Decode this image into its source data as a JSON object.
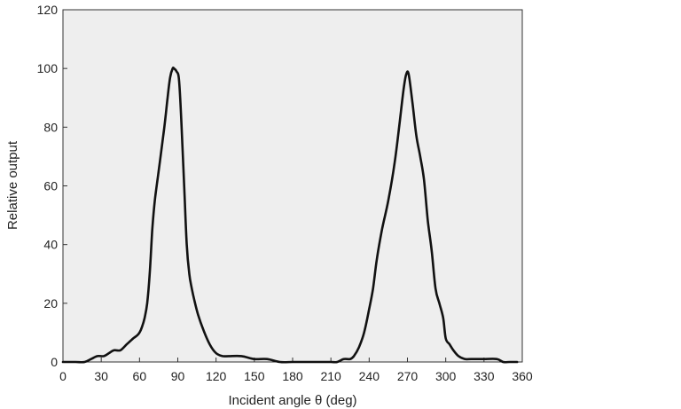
{
  "chart_data": {
    "type": "line",
    "title": "",
    "xlabel": "Incident angle θ (deg)",
    "ylabel": "Relative output",
    "xlim": [
      0,
      360
    ],
    "ylim": [
      0,
      120
    ],
    "xticks": [
      0,
      30,
      60,
      90,
      120,
      150,
      180,
      210,
      240,
      270,
      300,
      330,
      360
    ],
    "yticks": [
      0,
      20,
      40,
      60,
      80,
      100,
      120
    ],
    "xtick_labels": [
      "0",
      "30",
      "60",
      "90",
      "120",
      "150",
      "180",
      "210",
      "240",
      "270",
      "300",
      "330",
      "360"
    ],
    "ytick_labels": [
      "0",
      "20",
      "40",
      "60",
      "80",
      "100",
      "120"
    ],
    "grid": false,
    "legend": "none",
    "plot_background": "#eeeeee",
    "line_color": "#111111",
    "series": [
      {
        "x": [
          0,
          10,
          17,
          22,
          27,
          32,
          36,
          40,
          45,
          50,
          55,
          58,
          60,
          62,
          64,
          66,
          68,
          70,
          72,
          75,
          78,
          80,
          82,
          84,
          86,
          87,
          89,
          91,
          93,
          95,
          97,
          99,
          101,
          103,
          106,
          110,
          115,
          120,
          125,
          130,
          140,
          150,
          160,
          170,
          180,
          190,
          200,
          210,
          215,
          220,
          225,
          228,
          232,
          236,
          240,
          243,
          246,
          250,
          255,
          260,
          264,
          267,
          269,
          271,
          274,
          277,
          280,
          283,
          286,
          289,
          292,
          295,
          298,
          300,
          303,
          306,
          310,
          315,
          320,
          330,
          340,
          345,
          350,
          356
        ],
        "y": [
          0,
          0,
          0,
          1,
          2,
          2,
          3,
          4,
          4,
          6,
          8,
          9,
          10,
          12,
          15,
          20,
          30,
          45,
          55,
          65,
          75,
          82,
          90,
          97,
          100,
          100,
          99,
          96,
          80,
          60,
          40,
          30,
          25,
          21,
          16,
          11,
          6,
          3,
          2,
          2,
          2,
          1,
          1,
          0,
          0,
          0,
          0,
          0,
          0,
          1,
          1,
          2,
          5,
          10,
          18,
          25,
          35,
          45,
          55,
          68,
          82,
          93,
          98,
          98,
          88,
          77,
          70,
          62,
          48,
          38,
          25,
          20,
          15,
          8,
          6,
          4,
          2,
          1,
          1,
          1,
          1,
          0,
          0,
          0
        ]
      }
    ]
  }
}
